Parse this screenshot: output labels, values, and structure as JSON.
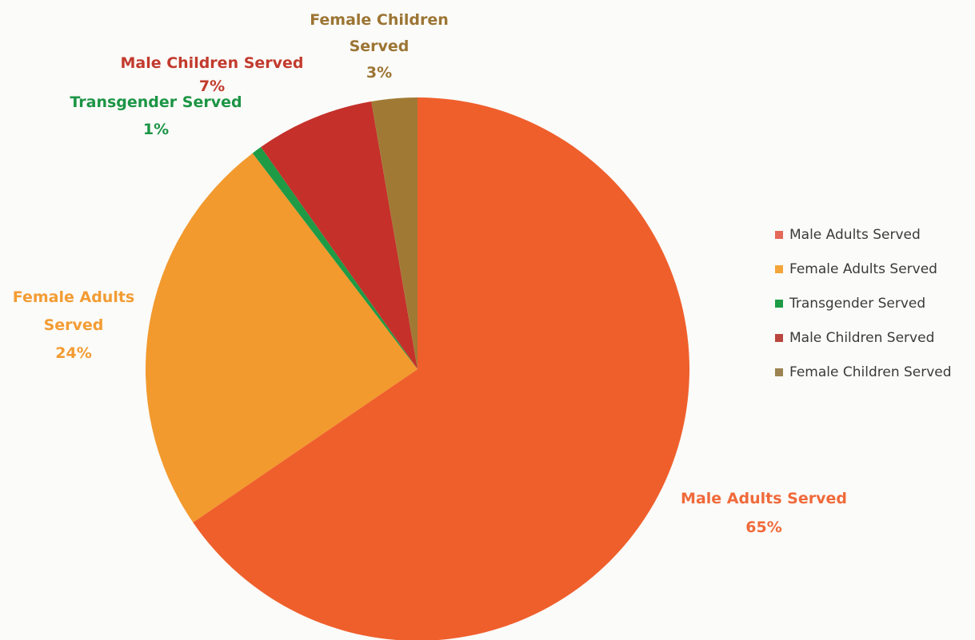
{
  "chart_data": {
    "type": "pie",
    "title": "",
    "legend_position": "right",
    "slices": [
      {
        "label": "Male Adults Served",
        "value": 65,
        "display": "65%",
        "color": "#ef5f2c",
        "label_color": "#f06a3a"
      },
      {
        "label": "Female Adults Served",
        "value": 24,
        "display": "24%",
        "color": "#f29a2e",
        "label_color": "#f39c33"
      },
      {
        "label": "Transgender Served",
        "value": 0.6,
        "display": "1%",
        "color": "#1f9a45",
        "label_color": "#1c9545"
      },
      {
        "label": "Male Children Served",
        "value": 7,
        "display": "7%",
        "color": "#c5302a",
        "label_color": "#c23b2d"
      },
      {
        "label": "Female Children Served",
        "value": 2.7,
        "display": "3%",
        "color": "#a07a35",
        "label_color": "#9c7534"
      }
    ],
    "legend": [
      "Male Adults Served",
      "Female Adults Served",
      "Transgender Served",
      "Male Children Served",
      "Female Children Served"
    ]
  }
}
